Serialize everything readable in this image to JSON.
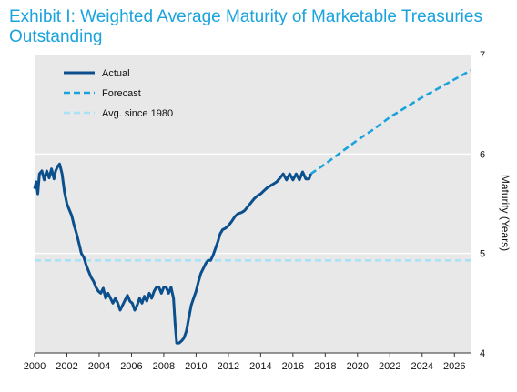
{
  "chart_data": {
    "type": "line",
    "title": "Exhibit I: Weighted Average Maturity  of Marketable Treasuries Outstanding",
    "ylabel": "Maturity (Years)",
    "xlabel": "",
    "xlim": [
      2000,
      2027
    ],
    "ylim": [
      4,
      7
    ],
    "x_ticks": [
      2000,
      2002,
      2004,
      2006,
      2008,
      2010,
      2012,
      2014,
      2016,
      2018,
      2020,
      2022,
      2024,
      2026
    ],
    "y_ticks": [
      4,
      5,
      6,
      7
    ],
    "grid": "horizontal",
    "legend_position": "top-left",
    "background_color": "#e8e8e8",
    "series": [
      {
        "name": "Actual",
        "style": "solid",
        "color": "#0b4f8c",
        "points": [
          [
            2000.0,
            5.65
          ],
          [
            2000.1,
            5.72
          ],
          [
            2000.2,
            5.6
          ],
          [
            2000.3,
            5.8
          ],
          [
            2000.45,
            5.83
          ],
          [
            2000.6,
            5.74
          ],
          [
            2000.75,
            5.83
          ],
          [
            2000.9,
            5.76
          ],
          [
            2001.05,
            5.85
          ],
          [
            2001.2,
            5.75
          ],
          [
            2001.3,
            5.83
          ],
          [
            2001.45,
            5.88
          ],
          [
            2001.55,
            5.9
          ],
          [
            2001.7,
            5.8
          ],
          [
            2001.85,
            5.62
          ],
          [
            2002.0,
            5.5
          ],
          [
            2002.15,
            5.44
          ],
          [
            2002.3,
            5.38
          ],
          [
            2002.45,
            5.28
          ],
          [
            2002.6,
            5.2
          ],
          [
            2002.75,
            5.1
          ],
          [
            2002.9,
            5.0
          ],
          [
            2003.05,
            4.96
          ],
          [
            2003.2,
            4.88
          ],
          [
            2003.35,
            4.82
          ],
          [
            2003.5,
            4.76
          ],
          [
            2003.65,
            4.72
          ],
          [
            2003.8,
            4.66
          ],
          [
            2003.95,
            4.62
          ],
          [
            2004.1,
            4.6
          ],
          [
            2004.25,
            4.65
          ],
          [
            2004.4,
            4.55
          ],
          [
            2004.55,
            4.6
          ],
          [
            2004.7,
            4.55
          ],
          [
            2004.85,
            4.5
          ],
          [
            2005.0,
            4.55
          ],
          [
            2005.15,
            4.5
          ],
          [
            2005.3,
            4.43
          ],
          [
            2005.45,
            4.48
          ],
          [
            2005.6,
            4.53
          ],
          [
            2005.75,
            4.58
          ],
          [
            2005.9,
            4.52
          ],
          [
            2006.05,
            4.5
          ],
          [
            2006.2,
            4.43
          ],
          [
            2006.35,
            4.48
          ],
          [
            2006.5,
            4.55
          ],
          [
            2006.65,
            4.5
          ],
          [
            2006.8,
            4.57
          ],
          [
            2006.95,
            4.52
          ],
          [
            2007.1,
            4.6
          ],
          [
            2007.25,
            4.55
          ],
          [
            2007.4,
            4.62
          ],
          [
            2007.55,
            4.66
          ],
          [
            2007.7,
            4.66
          ],
          [
            2007.85,
            4.6
          ],
          [
            2008.0,
            4.66
          ],
          [
            2008.15,
            4.66
          ],
          [
            2008.3,
            4.6
          ],
          [
            2008.45,
            4.66
          ],
          [
            2008.6,
            4.55
          ],
          [
            2008.7,
            4.3
          ],
          [
            2008.8,
            4.1
          ],
          [
            2008.95,
            4.1
          ],
          [
            2009.1,
            4.12
          ],
          [
            2009.25,
            4.15
          ],
          [
            2009.4,
            4.22
          ],
          [
            2009.55,
            4.35
          ],
          [
            2009.7,
            4.48
          ],
          [
            2009.85,
            4.55
          ],
          [
            2010.0,
            4.62
          ],
          [
            2010.15,
            4.72
          ],
          [
            2010.3,
            4.8
          ],
          [
            2010.45,
            4.85
          ],
          [
            2010.6,
            4.9
          ],
          [
            2010.75,
            4.93
          ],
          [
            2010.9,
            4.93
          ],
          [
            2011.05,
            4.98
          ],
          [
            2011.2,
            5.05
          ],
          [
            2011.35,
            5.12
          ],
          [
            2011.5,
            5.2
          ],
          [
            2011.65,
            5.24
          ],
          [
            2011.8,
            5.25
          ],
          [
            2012.0,
            5.28
          ],
          [
            2012.2,
            5.32
          ],
          [
            2012.4,
            5.37
          ],
          [
            2012.6,
            5.4
          ],
          [
            2012.8,
            5.41
          ],
          [
            2013.0,
            5.43
          ],
          [
            2013.2,
            5.47
          ],
          [
            2013.4,
            5.51
          ],
          [
            2013.6,
            5.55
          ],
          [
            2013.8,
            5.58
          ],
          [
            2014.0,
            5.6
          ],
          [
            2014.2,
            5.63
          ],
          [
            2014.4,
            5.66
          ],
          [
            2014.6,
            5.68
          ],
          [
            2014.8,
            5.7
          ],
          [
            2015.0,
            5.72
          ],
          [
            2015.2,
            5.76
          ],
          [
            2015.4,
            5.8
          ],
          [
            2015.6,
            5.74
          ],
          [
            2015.8,
            5.8
          ],
          [
            2016.0,
            5.74
          ],
          [
            2016.2,
            5.8
          ],
          [
            2016.4,
            5.74
          ],
          [
            2016.6,
            5.82
          ],
          [
            2016.8,
            5.75
          ],
          [
            2017.0,
            5.75
          ],
          [
            2017.1,
            5.8
          ]
        ]
      },
      {
        "name": "Forecast",
        "style": "dashed",
        "color": "#1aa3dd",
        "points": [
          [
            2017.1,
            5.8
          ],
          [
            2018,
            5.9
          ],
          [
            2019,
            6.02
          ],
          [
            2020,
            6.14
          ],
          [
            2021,
            6.25
          ],
          [
            2022,
            6.37
          ],
          [
            2023,
            6.47
          ],
          [
            2024,
            6.57
          ],
          [
            2025,
            6.66
          ],
          [
            2026,
            6.75
          ],
          [
            2027,
            6.84
          ]
        ]
      },
      {
        "name": "Avg. since 1980",
        "style": "dashed",
        "color": "#a9e2f7",
        "points": [
          [
            2000,
            4.93
          ],
          [
            2027,
            4.93
          ]
        ]
      }
    ]
  }
}
